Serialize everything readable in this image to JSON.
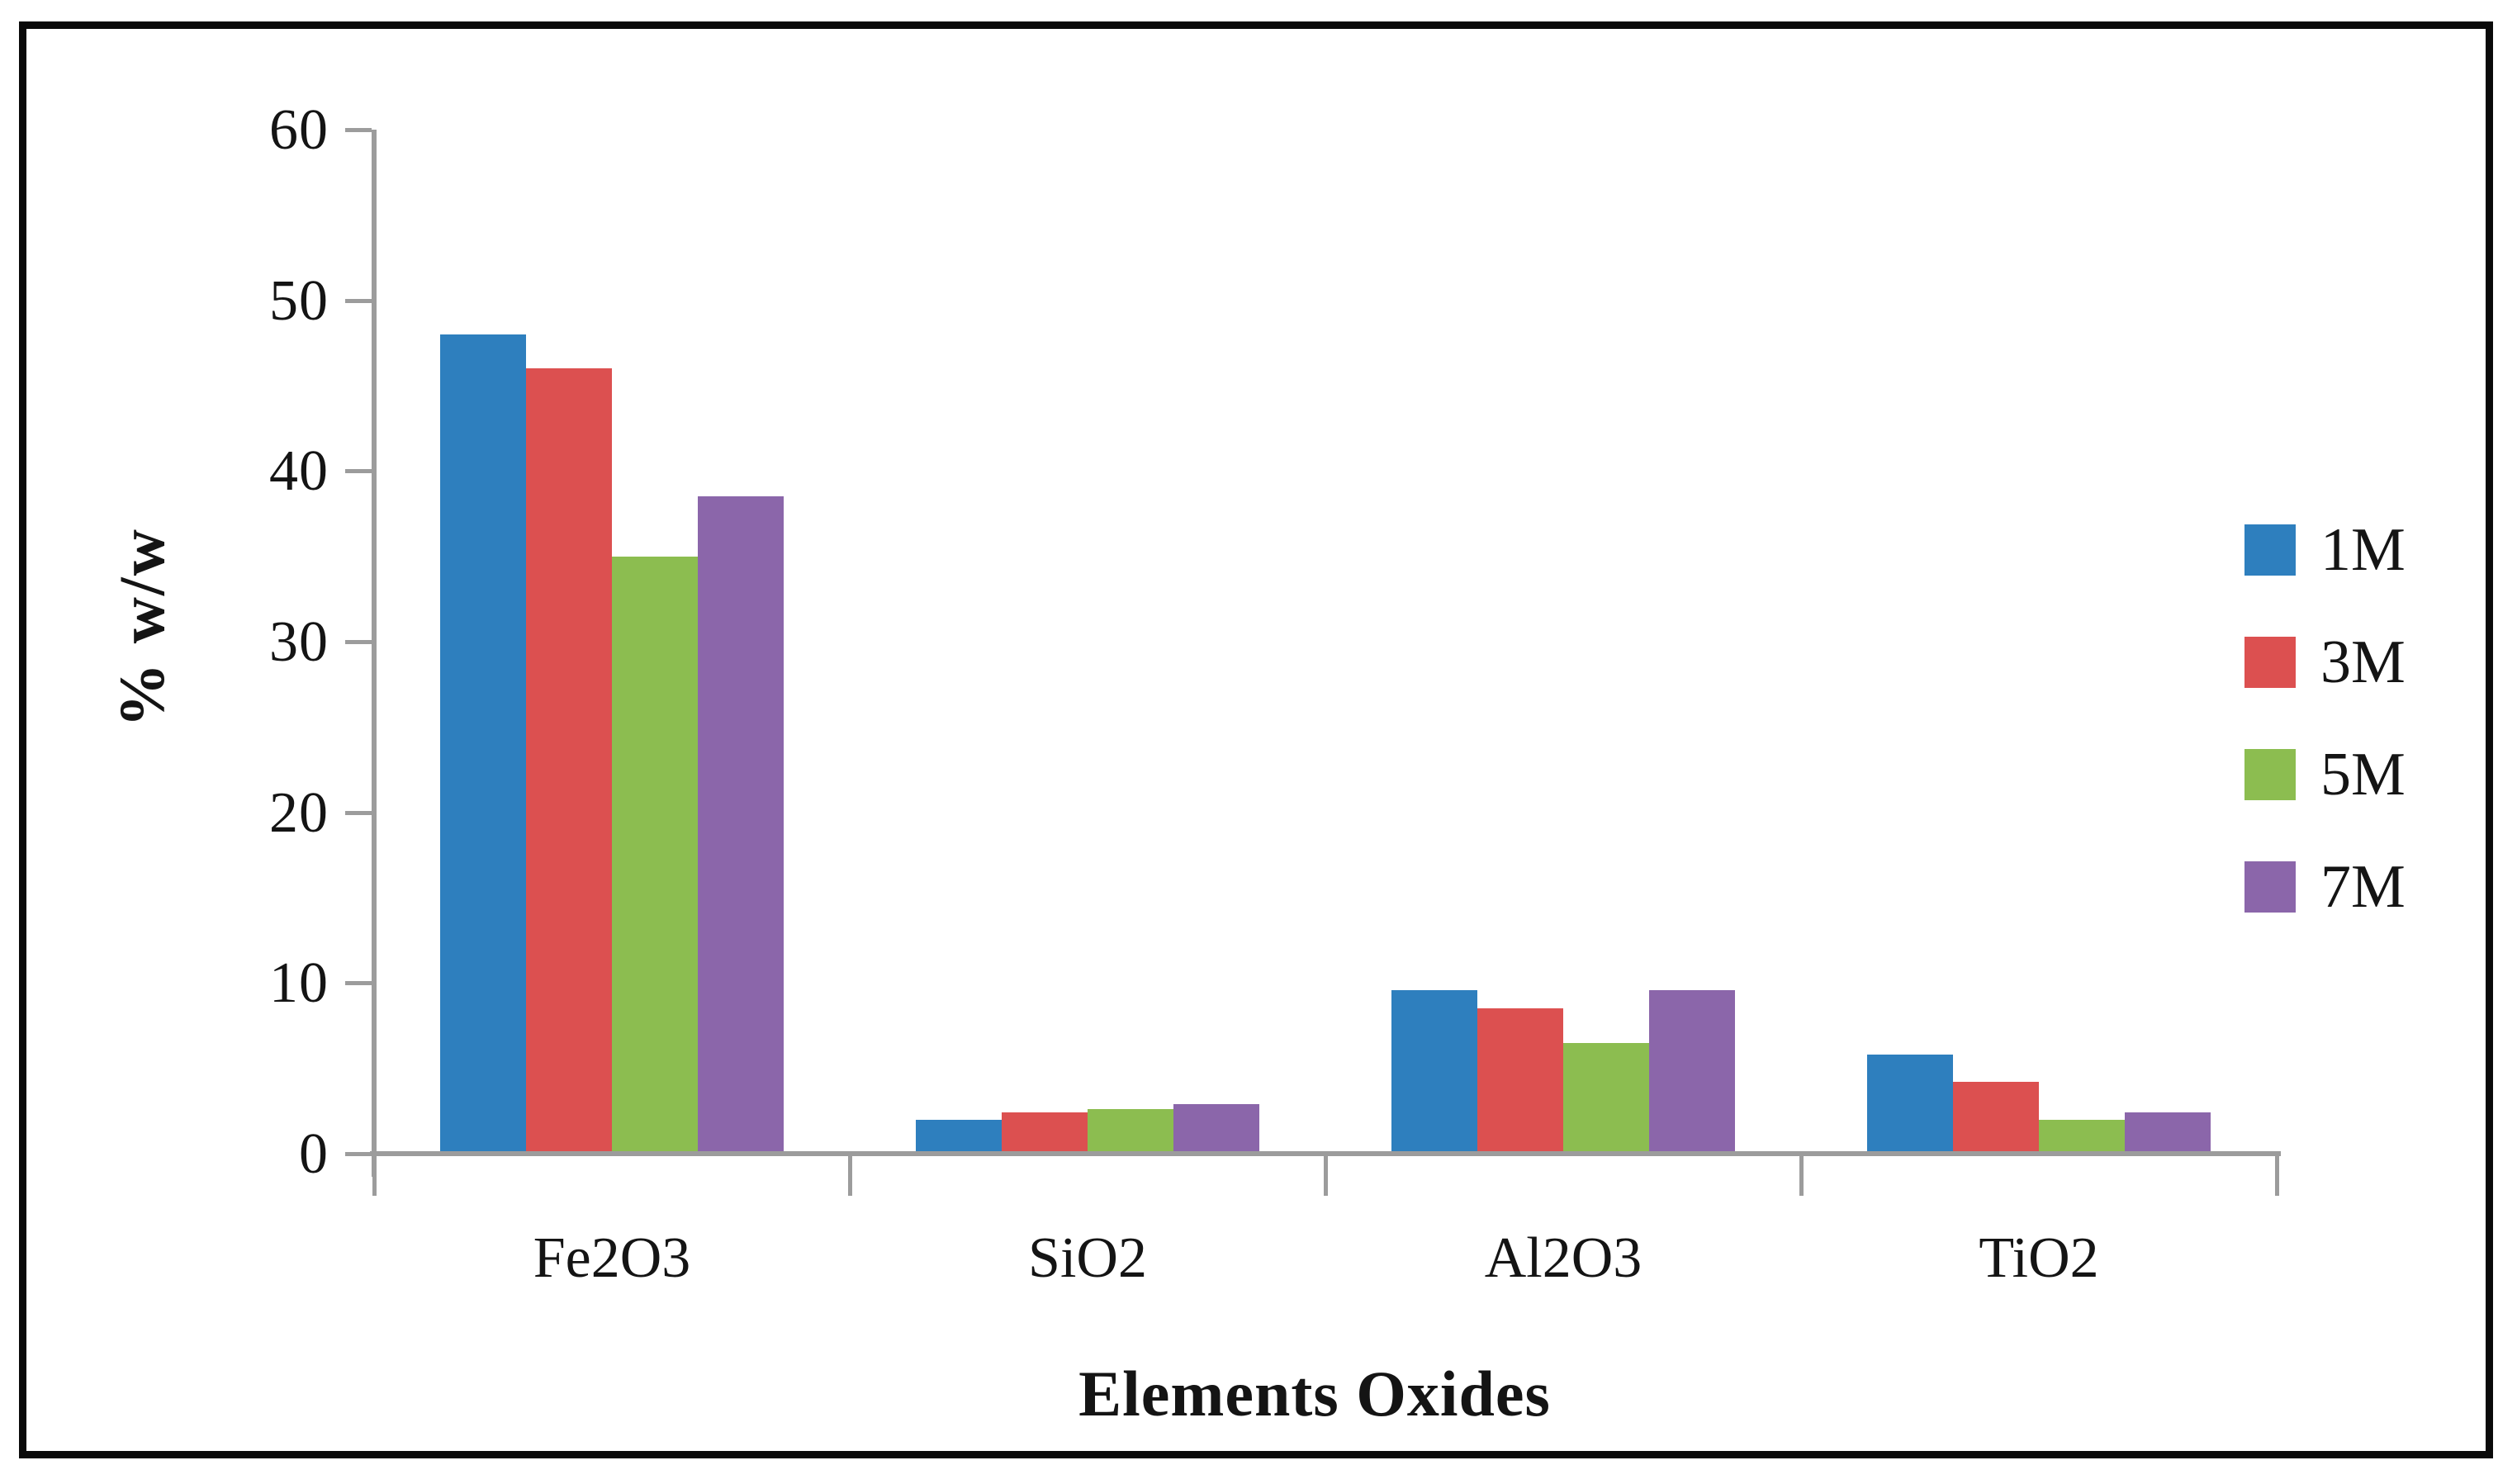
{
  "figure": {
    "border_color": "#0a0a0a",
    "background_color": "#ffffff",
    "axis_color": "#9c9c9c",
    "text_color": "#141414"
  },
  "chart_data": {
    "type": "bar",
    "title": "",
    "xlabel": "Elements Oxides",
    "ylabel": "% w/w",
    "categories": [
      "Fe2O3",
      "SiO2",
      "Al2O3",
      "TiO2"
    ],
    "series": [
      {
        "name": "1M",
        "color": "#2e7fbe",
        "values": [
          48.0,
          2.0,
          9.6,
          5.8
        ]
      },
      {
        "name": "3M",
        "color": "#dc5050",
        "values": [
          46.0,
          2.4,
          8.5,
          4.2
        ]
      },
      {
        "name": "5M",
        "color": "#8cbd50",
        "values": [
          35.0,
          2.6,
          6.5,
          2.0
        ]
      },
      {
        "name": "7M",
        "color": "#8b66aa",
        "values": [
          38.5,
          2.9,
          9.6,
          2.4
        ]
      }
    ],
    "ylim": [
      0,
      60
    ],
    "y_ticks": [
      0,
      10,
      20,
      30,
      40,
      50,
      60
    ],
    "grid": false,
    "legend_position": "right",
    "legend_entries": [
      "1M",
      "3M",
      "5M",
      "7M"
    ]
  }
}
